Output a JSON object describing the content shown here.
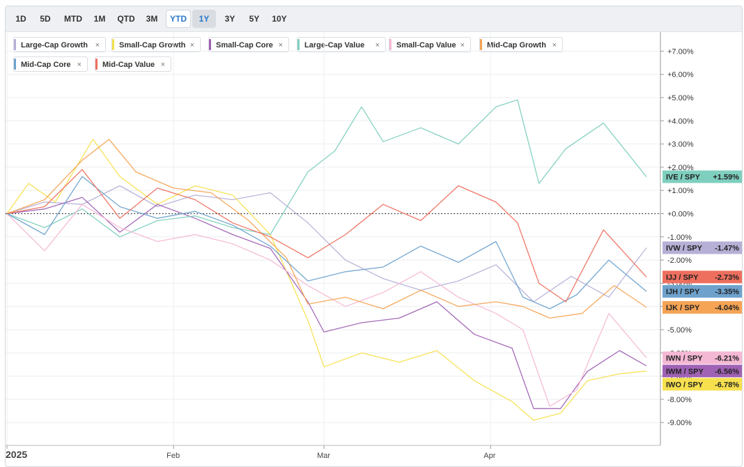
{
  "toolbar": {
    "ranges": [
      "1D",
      "5D",
      "MTD",
      "1M",
      "QTD",
      "3M",
      "YTD",
      "1Y",
      "3Y",
      "5Y",
      "10Y"
    ],
    "active": "YTD",
    "selected": "1Y"
  },
  "legend": [
    {
      "label": "Large-Cap Growth",
      "color": "#b7b0d6"
    },
    {
      "label": "Small-Cap Growth",
      "color": "#f6e04e"
    },
    {
      "label": "Small-Cap Core",
      "color": "#9f62b4"
    },
    {
      "label": "Large-Cap Value",
      "color": "#7fcfbf"
    },
    {
      "label": "Small-Cap Value",
      "color": "#f4b8d4"
    },
    {
      "label": "Mid-Cap Growth",
      "color": "#f5a455"
    },
    {
      "label": "Mid-Cap Core",
      "color": "#6ea2cd"
    },
    {
      "label": "Mid-Cap Value",
      "color": "#ee6f5e"
    }
  ],
  "legend_close_glyph": "×",
  "chart_data": {
    "type": "line",
    "y_unit": "%",
    "ylim": [
      -10,
      8
    ],
    "yticks": [
      "+7.00%",
      "+6.00%",
      "+5.00%",
      "+4.00%",
      "+3.00%",
      "+2.00%",
      "+1.00%",
      "+0.00%",
      "-1.00%",
      "-2.00%",
      "-3.00%",
      "-4.00%",
      "-5.00%",
      "-6.00%",
      "-7.00%",
      "-8.00%",
      "-9.00%"
    ],
    "ytick_values": [
      7,
      6,
      5,
      4,
      3,
      2,
      1,
      0,
      -1,
      -2,
      -3,
      -4,
      -5,
      -6,
      -7,
      -8,
      -9
    ],
    "xticks": [
      {
        "label": "2025",
        "date": "2025-01-01"
      },
      {
        "label": "Feb",
        "date": "2025-02-01"
      },
      {
        "label": "Mar",
        "date": "2025-03-01"
      },
      {
        "label": "Apr",
        "date": "2025-04-01"
      }
    ],
    "x_start": "2025-01-01",
    "x_end": "2025-04-30",
    "grid": true,
    "zero_line": "dotted",
    "series": [
      {
        "name": "Large-Cap Growth",
        "color": "#b7b0d6",
        "end_label": "IVW / SPY",
        "end_value": "-1.47%",
        "points": [
          [
            "2025-01-01",
            0
          ],
          [
            "2025-01-08",
            0.5
          ],
          [
            "2025-01-15",
            0.4
          ],
          [
            "2025-01-22",
            1.2
          ],
          [
            "2025-01-29",
            0.3
          ],
          [
            "2025-02-05",
            0.8
          ],
          [
            "2025-02-12",
            0.6
          ],
          [
            "2025-02-19",
            0.9
          ],
          [
            "2025-02-26",
            -0.4
          ],
          [
            "2025-03-05",
            -2.0
          ],
          [
            "2025-03-12",
            -2.8
          ],
          [
            "2025-03-19",
            -3.3
          ],
          [
            "2025-03-26",
            -2.9
          ],
          [
            "2025-04-02",
            -2.2
          ],
          [
            "2025-04-09",
            -3.8
          ],
          [
            "2025-04-16",
            -2.7
          ],
          [
            "2025-04-23",
            -3.6
          ],
          [
            "2025-04-30",
            -1.47
          ]
        ]
      },
      {
        "name": "Small-Cap Growth",
        "color": "#f6e04e",
        "end_label": "IWO / SPY",
        "end_value": "-6.78%",
        "points": [
          [
            "2025-01-01",
            0
          ],
          [
            "2025-01-05",
            1.3
          ],
          [
            "2025-01-10",
            0.5
          ],
          [
            "2025-01-17",
            3.2
          ],
          [
            "2025-01-22",
            1.6
          ],
          [
            "2025-01-29",
            0.4
          ],
          [
            "2025-02-05",
            1.2
          ],
          [
            "2025-02-12",
            0.8
          ],
          [
            "2025-02-19",
            -0.9
          ],
          [
            "2025-02-26",
            -4.6
          ],
          [
            "2025-03-01",
            -6.6
          ],
          [
            "2025-03-08",
            -6.0
          ],
          [
            "2025-03-15",
            -6.4
          ],
          [
            "2025-03-22",
            -5.9
          ],
          [
            "2025-03-29",
            -7.2
          ],
          [
            "2025-04-05",
            -8.1
          ],
          [
            "2025-04-09",
            -8.9
          ],
          [
            "2025-04-14",
            -8.6
          ],
          [
            "2025-04-19",
            -7.2
          ],
          [
            "2025-04-25",
            -6.9
          ],
          [
            "2025-04-30",
            -6.78
          ]
        ]
      },
      {
        "name": "Small-Cap Core",
        "color": "#9f62b4",
        "end_label": "IWM / SPY",
        "end_value": "-6.56%",
        "points": [
          [
            "2025-01-01",
            0
          ],
          [
            "2025-01-08",
            0.2
          ],
          [
            "2025-01-15",
            0.7
          ],
          [
            "2025-01-22",
            -0.8
          ],
          [
            "2025-01-29",
            0.4
          ],
          [
            "2025-02-05",
            -0.2
          ],
          [
            "2025-02-12",
            -0.9
          ],
          [
            "2025-02-19",
            -1.5
          ],
          [
            "2025-02-26",
            -3.8
          ],
          [
            "2025-03-01",
            -5.1
          ],
          [
            "2025-03-08",
            -4.7
          ],
          [
            "2025-03-15",
            -4.5
          ],
          [
            "2025-03-22",
            -3.8
          ],
          [
            "2025-03-29",
            -5.2
          ],
          [
            "2025-04-05",
            -5.8
          ],
          [
            "2025-04-09",
            -8.4
          ],
          [
            "2025-04-14",
            -8.4
          ],
          [
            "2025-04-19",
            -6.8
          ],
          [
            "2025-04-25",
            -5.9
          ],
          [
            "2025-04-30",
            -6.56
          ]
        ]
      },
      {
        "name": "Large-Cap Value",
        "color": "#7fcfbf",
        "end_label": "IVE / SPY",
        "end_value": "+1.59%",
        "points": [
          [
            "2025-01-01",
            0
          ],
          [
            "2025-01-08",
            -0.6
          ],
          [
            "2025-01-15",
            0.2
          ],
          [
            "2025-01-22",
            -1.0
          ],
          [
            "2025-01-29",
            -0.3
          ],
          [
            "2025-02-05",
            -0.1
          ],
          [
            "2025-02-12",
            -0.6
          ],
          [
            "2025-02-19",
            -0.9
          ],
          [
            "2025-02-26",
            1.8
          ],
          [
            "2025-03-03",
            2.7
          ],
          [
            "2025-03-08",
            4.6
          ],
          [
            "2025-03-12",
            3.1
          ],
          [
            "2025-03-19",
            3.7
          ],
          [
            "2025-03-26",
            3.0
          ],
          [
            "2025-04-02",
            4.6
          ],
          [
            "2025-04-06",
            4.9
          ],
          [
            "2025-04-10",
            1.3
          ],
          [
            "2025-04-15",
            2.8
          ],
          [
            "2025-04-22",
            3.9
          ],
          [
            "2025-04-30",
            1.59
          ]
        ]
      },
      {
        "name": "Small-Cap Value",
        "color": "#f4b8d4",
        "end_label": "IWN / SPY",
        "end_value": "-6.21%",
        "points": [
          [
            "2025-01-01",
            0
          ],
          [
            "2025-01-08",
            -1.6
          ],
          [
            "2025-01-15",
            0.4
          ],
          [
            "2025-01-22",
            -0.6
          ],
          [
            "2025-01-29",
            -1.2
          ],
          [
            "2025-02-05",
            -0.9
          ],
          [
            "2025-02-12",
            -1.3
          ],
          [
            "2025-02-19",
            -2.0
          ],
          [
            "2025-02-26",
            -3.1
          ],
          [
            "2025-03-05",
            -4.0
          ],
          [
            "2025-03-12",
            -3.4
          ],
          [
            "2025-03-19",
            -2.5
          ],
          [
            "2025-03-26",
            -3.6
          ],
          [
            "2025-04-02",
            -4.3
          ],
          [
            "2025-04-07",
            -5.0
          ],
          [
            "2025-04-12",
            -8.3
          ],
          [
            "2025-04-17",
            -7.6
          ],
          [
            "2025-04-23",
            -4.3
          ],
          [
            "2025-04-30",
            -6.21
          ]
        ]
      },
      {
        "name": "Mid-Cap Growth",
        "color": "#f5a455",
        "end_label": "IJK / SPY",
        "end_value": "-4.04%",
        "points": [
          [
            "2025-01-01",
            0
          ],
          [
            "2025-01-08",
            0.6
          ],
          [
            "2025-01-15",
            2.3
          ],
          [
            "2025-01-20",
            3.2
          ],
          [
            "2025-01-25",
            1.8
          ],
          [
            "2025-02-01",
            1.1
          ],
          [
            "2025-02-08",
            0.9
          ],
          [
            "2025-02-15",
            -0.3
          ],
          [
            "2025-02-22",
            -1.9
          ],
          [
            "2025-02-26",
            -3.9
          ],
          [
            "2025-03-05",
            -3.6
          ],
          [
            "2025-03-12",
            -4.1
          ],
          [
            "2025-03-19",
            -3.3
          ],
          [
            "2025-03-26",
            -4.0
          ],
          [
            "2025-04-02",
            -3.8
          ],
          [
            "2025-04-07",
            -4.0
          ],
          [
            "2025-04-12",
            -4.5
          ],
          [
            "2025-04-18",
            -4.3
          ],
          [
            "2025-04-24",
            -3.1
          ],
          [
            "2025-04-30",
            -4.04
          ]
        ]
      },
      {
        "name": "Mid-Cap Core",
        "color": "#6ea2cd",
        "end_label": "IJH / SPY",
        "end_value": "-3.35%",
        "points": [
          [
            "2025-01-01",
            0
          ],
          [
            "2025-01-08",
            -0.9
          ],
          [
            "2025-01-15",
            1.6
          ],
          [
            "2025-01-22",
            0.3
          ],
          [
            "2025-01-29",
            -0.2
          ],
          [
            "2025-02-05",
            0.1
          ],
          [
            "2025-02-12",
            -0.5
          ],
          [
            "2025-02-19",
            -1.4
          ],
          [
            "2025-02-26",
            -2.9
          ],
          [
            "2025-03-05",
            -2.5
          ],
          [
            "2025-03-12",
            -2.3
          ],
          [
            "2025-03-19",
            -1.4
          ],
          [
            "2025-03-26",
            -2.1
          ],
          [
            "2025-04-02",
            -1.2
          ],
          [
            "2025-04-07",
            -3.6
          ],
          [
            "2025-04-12",
            -4.1
          ],
          [
            "2025-04-17",
            -3.5
          ],
          [
            "2025-04-23",
            -2.0
          ],
          [
            "2025-04-30",
            -3.35
          ]
        ]
      },
      {
        "name": "Mid-Cap Value",
        "color": "#ee6f5e",
        "end_label": "IJJ / SPY",
        "end_value": "-2.73%",
        "points": [
          [
            "2025-01-01",
            0
          ],
          [
            "2025-01-08",
            0.3
          ],
          [
            "2025-01-15",
            1.9
          ],
          [
            "2025-01-22",
            -0.2
          ],
          [
            "2025-01-29",
            1.1
          ],
          [
            "2025-02-05",
            0.6
          ],
          [
            "2025-02-12",
            -0.4
          ],
          [
            "2025-02-19",
            -1.0
          ],
          [
            "2025-02-26",
            -1.9
          ],
          [
            "2025-03-05",
            -0.9
          ],
          [
            "2025-03-12",
            0.4
          ],
          [
            "2025-03-19",
            -0.3
          ],
          [
            "2025-03-26",
            1.2
          ],
          [
            "2025-04-02",
            0.5
          ],
          [
            "2025-04-06",
            -0.4
          ],
          [
            "2025-04-10",
            -3.0
          ],
          [
            "2025-04-15",
            -3.8
          ],
          [
            "2025-04-22",
            -0.7
          ],
          [
            "2025-04-30",
            -2.73
          ]
        ]
      }
    ]
  }
}
